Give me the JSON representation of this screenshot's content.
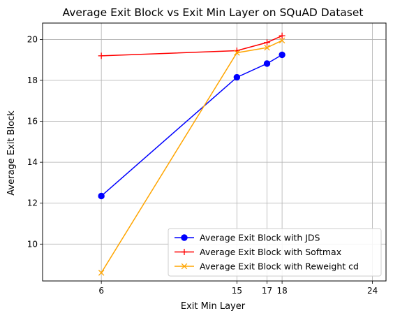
{
  "chart_data": {
    "type": "line",
    "title": "Average Exit Block vs Exit Min Layer on SQuAD Dataset",
    "xlabel": "Exit Min Layer",
    "ylabel": "Average Exit Block",
    "xlim": [
      2.1,
      24.9
    ],
    "ylim": [
      8.2,
      20.8
    ],
    "xticks": [
      6,
      15,
      17,
      18,
      24
    ],
    "yticks": [
      10,
      12,
      14,
      16,
      18,
      20
    ],
    "grid": true,
    "legend_position": "lower-right",
    "series": [
      {
        "name": "Average Exit Block with JDS",
        "color": "#0000ff",
        "marker": "circle",
        "x": [
          6,
          15,
          17,
          18
        ],
        "y": [
          12.35,
          18.15,
          18.82,
          19.25
        ]
      },
      {
        "name": "Average Exit Block with Softmax",
        "color": "#ff0000",
        "marker": "plus",
        "x": [
          6,
          15,
          17,
          18
        ],
        "y": [
          19.2,
          19.45,
          19.85,
          20.18
        ]
      },
      {
        "name": "Average Exit Block with Reweight cd",
        "color": "#ffa500",
        "marker": "x",
        "x": [
          6,
          15,
          17,
          18
        ],
        "y": [
          8.6,
          19.35,
          19.6,
          19.95
        ]
      }
    ]
  }
}
